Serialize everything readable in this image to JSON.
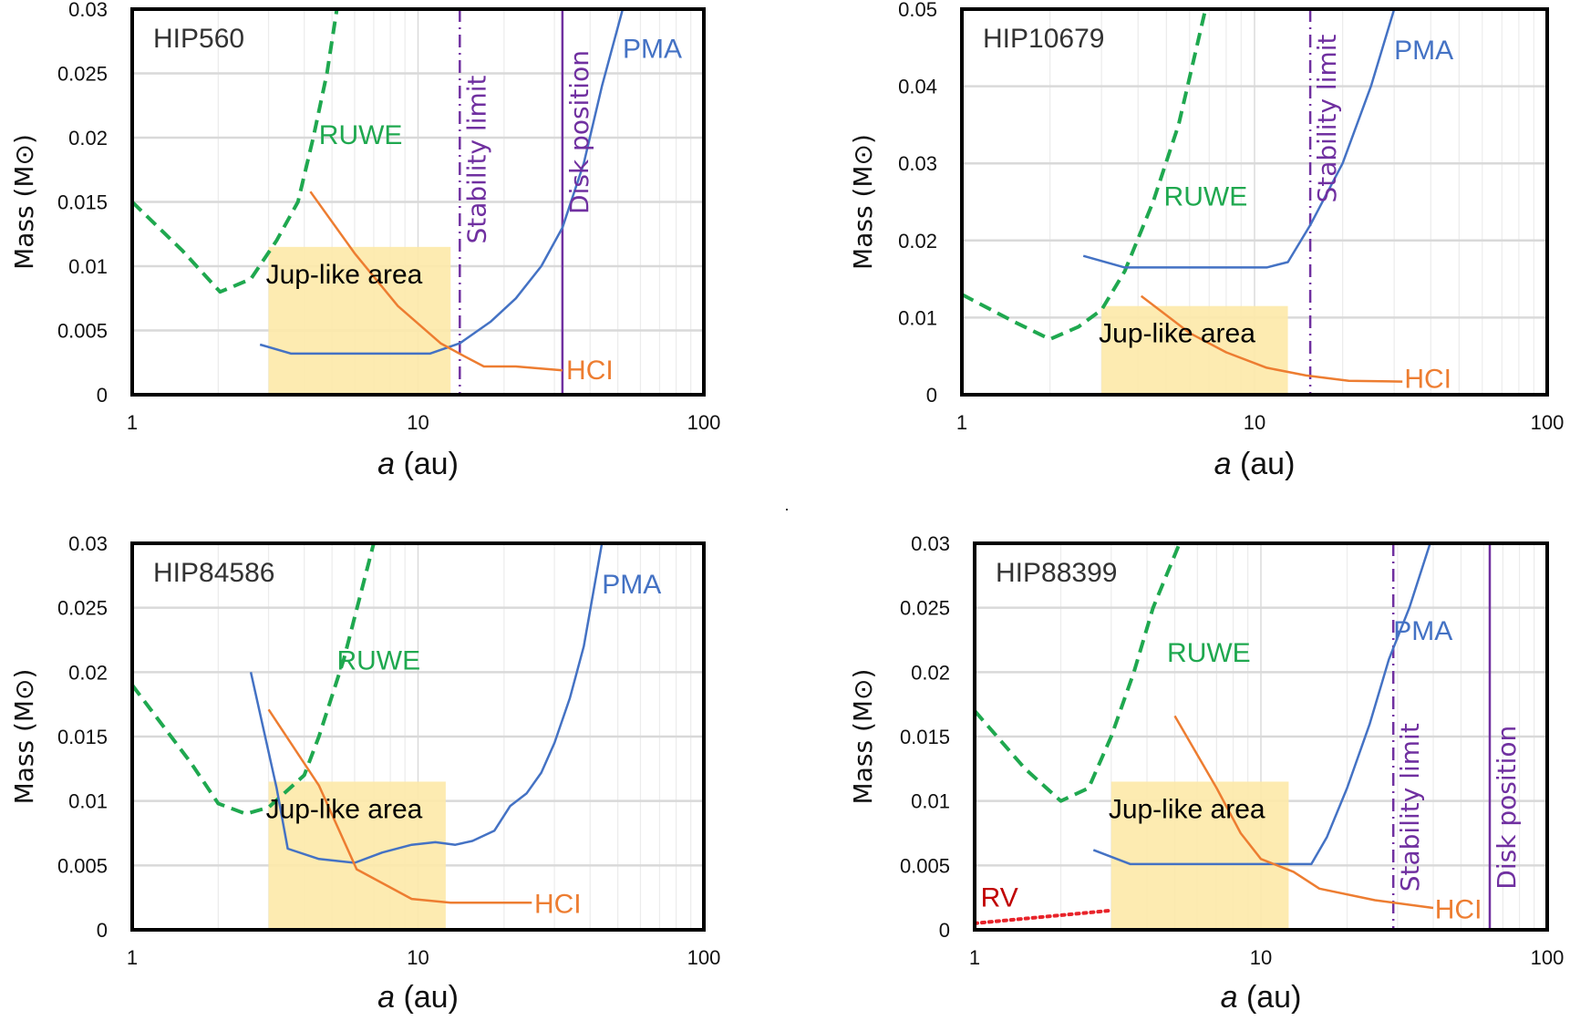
{
  "chart_data": [
    {
      "type": "line",
      "title": "HIP560",
      "xlabel_italic": "a",
      "xlabel_rest": " (au)",
      "ylabel": "Mass (M⊙)",
      "xscale": "log",
      "xlim": [
        1,
        100
      ],
      "ylim": [
        0,
        0.03
      ],
      "xticks": [
        1,
        10,
        100
      ],
      "xtick_labels": [
        "1",
        "10",
        "100"
      ],
      "yticks": [
        0,
        0.005,
        0.01,
        0.015,
        0.02,
        0.025,
        0.03
      ],
      "ytick_labels": [
        "0",
        "0.005",
        "0.01",
        "0.015",
        "0.02",
        "0.025",
        "0.03"
      ],
      "grid": true,
      "shaded_region": {
        "label": "Jup-like area",
        "x": [
          3,
          13
        ],
        "y": [
          0,
          0.0115
        ],
        "color": "#fde9a8"
      },
      "series": [
        {
          "name": "RUWE",
          "style": "dashed",
          "color": "#1fa84f",
          "x": [
            1,
            1.5,
            2.03,
            2.6,
            3.2,
            3.8,
            4.3,
            4.8,
            5.2
          ],
          "y": [
            0.015,
            0.0112,
            0.008,
            0.009,
            0.012,
            0.015,
            0.02,
            0.025,
            0.03
          ],
          "label_at": [
            4.5,
            0.0195
          ]
        },
        {
          "name": "PMA",
          "style": "solid",
          "color": "#4472c4",
          "x": [
            2.8,
            3.6,
            11,
            14,
            18,
            22,
            27,
            32,
            38,
            44,
            52
          ],
          "y": [
            0.0039,
            0.0032,
            0.0032,
            0.004,
            0.0057,
            0.0075,
            0.01,
            0.013,
            0.018,
            0.024,
            0.03
          ],
          "label_at": [
            52,
            0.0262
          ]
        },
        {
          "name": "HCI",
          "style": "solid",
          "color": "#ed7d31",
          "x": [
            4.2,
            6,
            8.5,
            12,
            14.5,
            17,
            22,
            32
          ],
          "y": [
            0.0158,
            0.011,
            0.0069,
            0.004,
            0.003,
            0.0022,
            0.0022,
            0.0019
          ],
          "label_at": [
            33,
            0.0012
          ]
        }
      ],
      "vlines": [
        {
          "name": "Stability limit",
          "x": 14,
          "style": "dashdot",
          "color": "#7030a0"
        },
        {
          "name": "Disk position",
          "x": 32,
          "style": "solid",
          "color": "#7030a0"
        }
      ]
    },
    {
      "type": "line",
      "title": "HIP10679",
      "xlabel_italic": "a",
      "xlabel_rest": " (au)",
      "ylabel": "Mass (M⊙)",
      "xscale": "log",
      "xlim": [
        1,
        100
      ],
      "ylim": [
        0,
        0.05
      ],
      "xticks": [
        1,
        10,
        100
      ],
      "xtick_labels": [
        "1",
        "10",
        "100"
      ],
      "yticks": [
        0,
        0.01,
        0.02,
        0.03,
        0.04,
        0.05
      ],
      "ytick_labels": [
        "0",
        "0.01",
        "0.02",
        "0.03",
        "0.04",
        "0.05"
      ],
      "grid": true,
      "shaded_region": {
        "label": "Jup-like area",
        "x": [
          3,
          13
        ],
        "y": [
          0,
          0.0115
        ],
        "color": "#fde9a8"
      },
      "series": [
        {
          "name": "RUWE",
          "style": "dashed",
          "color": "#1fa84f",
          "x": [
            1,
            1.5,
            2,
            2.5,
            3,
            3.6,
            4.5,
            5.5,
            6.8
          ],
          "y": [
            0.013,
            0.0095,
            0.0072,
            0.0088,
            0.011,
            0.016,
            0.025,
            0.035,
            0.05
          ],
          "label_at": [
            4.9,
            0.0245
          ]
        },
        {
          "name": "PMA",
          "style": "solid",
          "color": "#4472c4",
          "x": [
            2.6,
            3.6,
            11,
            13,
            15.5,
            20,
            25,
            30
          ],
          "y": [
            0.018,
            0.0165,
            0.0165,
            0.0172,
            0.022,
            0.03,
            0.04,
            0.05
          ],
          "label_at": [
            30,
            0.0435
          ]
        },
        {
          "name": "HCI",
          "style": "solid",
          "color": "#ed7d31",
          "x": [
            4.1,
            6,
            8,
            11,
            15,
            21,
            32
          ],
          "y": [
            0.0128,
            0.008,
            0.0055,
            0.0035,
            0.0025,
            0.0018,
            0.0017
          ],
          "label_at": [
            32.5,
            0.0009
          ]
        }
      ],
      "vlines": [
        {
          "name": "Stability limit",
          "x": 15.5,
          "style": "dashdot",
          "color": "#7030a0"
        }
      ]
    },
    {
      "type": "line",
      "title": "HIP84586",
      "xlabel_italic": "a",
      "xlabel_rest": " (au)",
      "ylabel": "Mass (M⊙)",
      "xscale": "log",
      "xlim": [
        1,
        100
      ],
      "ylim": [
        0,
        0.03
      ],
      "xticks": [
        1,
        10,
        100
      ],
      "xtick_labels": [
        "1",
        "10",
        "100"
      ],
      "yticks": [
        0,
        0.005,
        0.01,
        0.015,
        0.02,
        0.025,
        0.03
      ],
      "ytick_labels": [
        "0",
        "0.005",
        "0.01",
        "0.015",
        "0.02",
        "0.025",
        "0.03"
      ],
      "grid": true,
      "shaded_region": {
        "label": "Jup-like area",
        "x": [
          3,
          12.5
        ],
        "y": [
          0,
          0.0115
        ],
        "color": "#fde9a8"
      },
      "series": [
        {
          "name": "RUWE",
          "style": "dashed",
          "color": "#1fa84f",
          "x": [
            1,
            1.6,
            2,
            2.5,
            3,
            4,
            4.5,
            5.5,
            7
          ],
          "y": [
            0.019,
            0.013,
            0.0098,
            0.009,
            0.0095,
            0.012,
            0.015,
            0.021,
            0.03
          ],
          "label_at": [
            5.2,
            0.0202
          ]
        },
        {
          "name": "PMA",
          "style": "solid",
          "color": "#4472c4",
          "x": [
            2.6,
            3.2,
            3.5,
            4.5,
            6,
            7.5,
            9.5,
            11.5,
            13.5,
            15.5,
            18.5,
            21,
            24,
            27,
            30,
            34,
            38,
            44
          ],
          "y": [
            0.02,
            0.011,
            0.0063,
            0.0055,
            0.0052,
            0.006,
            0.0066,
            0.0068,
            0.0066,
            0.0069,
            0.0077,
            0.0096,
            0.0106,
            0.0122,
            0.0145,
            0.018,
            0.022,
            0.03
          ],
          "label_at": [
            44,
            0.0261
          ]
        },
        {
          "name": "HCI",
          "style": "solid",
          "color": "#ed7d31",
          "x": [
            3,
            4.5,
            6.1,
            9.5,
            13,
            25
          ],
          "y": [
            0.0171,
            0.0112,
            0.0047,
            0.0024,
            0.0021,
            0.0021
          ],
          "label_at": [
            25.5,
            0.0013
          ]
        }
      ],
      "vlines": []
    },
    {
      "type": "line",
      "title": "HIP88399",
      "xlabel_italic": "a",
      "xlabel_rest": " (au)",
      "ylabel": "Mass (M⊙)",
      "xscale": "log",
      "xlim": [
        1,
        100
      ],
      "ylim": [
        0,
        0.03
      ],
      "xticks": [
        1,
        10,
        100
      ],
      "xtick_labels": [
        "1",
        "10",
        "100"
      ],
      "yticks": [
        0,
        0.005,
        0.01,
        0.015,
        0.02,
        0.025,
        0.03
      ],
      "ytick_labels": [
        "0",
        "0.005",
        "0.01",
        "0.015",
        "0.02",
        "0.025",
        "0.03"
      ],
      "grid": true,
      "shaded_region": {
        "label": "Jup-like area",
        "x": [
          3,
          12.5
        ],
        "y": [
          0,
          0.0115
        ],
        "color": "#fde9a8"
      },
      "series": [
        {
          "name": "RUWE",
          "style": "dashed",
          "color": "#1fa84f",
          "x": [
            1,
            1.5,
            2,
            2.5,
            3,
            3.6,
            4.2,
            5.2
          ],
          "y": [
            0.017,
            0.0125,
            0.01,
            0.011,
            0.015,
            0.02,
            0.025,
            0.03
          ],
          "label_at": [
            4.7,
            0.0208
          ]
        },
        {
          "name": "PMA",
          "style": "solid",
          "color": "#4472c4",
          "x": [
            2.6,
            3.5,
            15,
            17,
            20,
            24,
            28,
            33,
            39
          ],
          "y": [
            0.0062,
            0.0051,
            0.0051,
            0.0072,
            0.011,
            0.016,
            0.021,
            0.025,
            0.03
          ],
          "label_at": [
            29,
            0.0225
          ]
        },
        {
          "name": "HCI",
          "style": "solid",
          "color": "#ed7d31",
          "x": [
            5,
            7,
            8.5,
            10,
            13,
            16,
            25,
            40
          ],
          "y": [
            0.0166,
            0.011,
            0.0075,
            0.0055,
            0.0045,
            0.0032,
            0.0023,
            0.0017
          ],
          "label_at": [
            40.5,
            0.0009
          ]
        },
        {
          "name": "RV",
          "style": "dotted",
          "color": "#e8232a",
          "x": [
            1,
            3
          ],
          "y": [
            0.0005,
            0.0015
          ],
          "label_color": "#c00000",
          "label_at": [
            1.05,
            0.0018
          ]
        }
      ],
      "vlines": [
        {
          "name": "Stability limit",
          "x": 29,
          "style": "dashdot",
          "color": "#7030a0"
        },
        {
          "name": "Disk position",
          "x": 63,
          "style": "solid",
          "color": "#7030a0"
        }
      ]
    }
  ]
}
